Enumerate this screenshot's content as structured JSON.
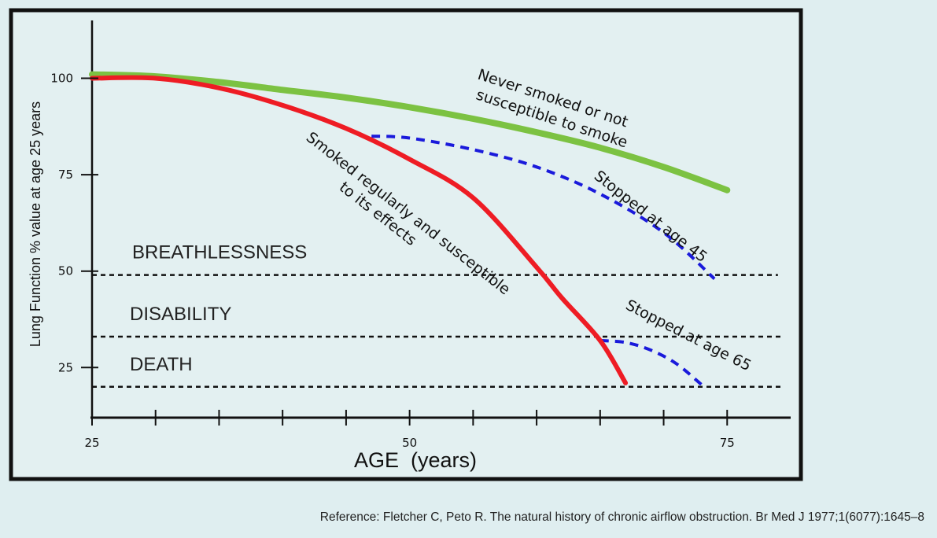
{
  "chart_data": {
    "type": "line",
    "xlabel": "AGE  (years)",
    "ylabel": "Lung Function % value at age 25 years",
    "xlim": [
      25,
      80
    ],
    "ylim": [
      12,
      115
    ],
    "x_ticks": [
      25,
      30,
      35,
      40,
      45,
      50,
      55,
      60,
      65,
      70,
      75
    ],
    "x_tick_labels": [
      {
        "value": 25,
        "label": "25"
      },
      {
        "value": 50,
        "label": "50"
      },
      {
        "value": 75,
        "label": "75"
      }
    ],
    "y_tick_labels": [
      {
        "value": 100,
        "label": "100"
      },
      {
        "value": 75,
        "label": "75"
      },
      {
        "value": 50,
        "label": "50"
      },
      {
        "value": 25,
        "label": "25"
      }
    ],
    "thresholds": [
      {
        "name": "BREATHLESSNESS",
        "y": 49
      },
      {
        "name": "DISABILITY",
        "y": 33
      },
      {
        "name": "DEATH",
        "y": 20
      }
    ],
    "series": [
      {
        "name": "Never smoked or not susceptible to smoke",
        "label_lines": [
          "Never smoked or not",
          "susceptible to smoke"
        ],
        "color": "#7cc242",
        "style": "solid",
        "x": [
          25,
          30,
          35,
          40,
          45,
          50,
          55,
          60,
          65,
          70,
          75
        ],
        "y": [
          101,
          100.5,
          99,
          97,
          95,
          92.5,
          89.5,
          86,
          82,
          77,
          71
        ]
      },
      {
        "name": "Smoked regularly and susceptible to its effects",
        "label_lines": [
          "Smoked regularly and susceptible",
          "to its effects"
        ],
        "color": "#ee1c24",
        "style": "solid",
        "x": [
          25,
          30,
          35,
          40,
          45,
          50,
          55,
          60,
          62,
          65,
          67
        ],
        "y": [
          100,
          100,
          97.5,
          93,
          87,
          79,
          69,
          51,
          43,
          32,
          21
        ]
      },
      {
        "name": "Stopped at age 45",
        "label_lines": [
          "Stopped at age 45"
        ],
        "color": "#1a1adb",
        "style": "dashed",
        "x": [
          47,
          50,
          55,
          60,
          65,
          70,
          74
        ],
        "y": [
          85,
          84.5,
          81.5,
          77,
          70,
          60,
          48
        ]
      },
      {
        "name": "Stopped at age 65",
        "label_lines": [
          "Stopped at age 65"
        ],
        "color": "#1a1adb",
        "style": "dashed",
        "x": [
          65,
          67,
          69,
          71,
          73
        ],
        "y": [
          32,
          31.5,
          29.5,
          26,
          20.5
        ]
      }
    ]
  },
  "reference": "Reference: Fletcher C, Peto R. The natural history of chronic airflow obstruction. Br Med J 1977;1(6077):1645–8"
}
